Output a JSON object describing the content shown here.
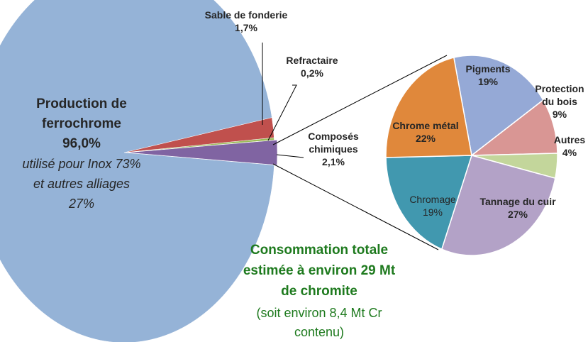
{
  "chart_data": [
    {
      "type": "pie",
      "categories": [
        "Production de ferrochrome",
        "Sable de fonderie",
        "Refractaire",
        "Composés chimiques"
      ],
      "values": [
        96.0,
        1.7,
        0.2,
        2.1
      ],
      "value_labels": [
        "96,0%",
        "1,7%",
        "0,2%",
        "2,1%"
      ],
      "colors": [
        "#95b3d7",
        "#c0504d",
        "#9bbb59",
        "#8064a2"
      ],
      "note": "utilisé pour Inox 73% et autres alliages 27%",
      "annotations": [
        "Consommation totale estimée à environ 29 Mt de chromite",
        "(soit environ 8,4 Mt Cr contenu)"
      ]
    },
    {
      "type": "pie",
      "categories": [
        "Pigments",
        "Protection du bois",
        "Autres",
        "Tannage du cuir",
        "Chromage",
        "Chrome métal"
      ],
      "values": [
        19,
        9,
        4,
        27,
        19,
        22
      ],
      "value_labels": [
        "19%",
        "9%",
        "4%",
        "27%",
        "19%",
        "22%"
      ],
      "colors": [
        "#95a9d6",
        "#d99694",
        "#c3d69b",
        "#b3a2c7",
        "#4198af",
        "#e0883b"
      ]
    }
  ]
}
